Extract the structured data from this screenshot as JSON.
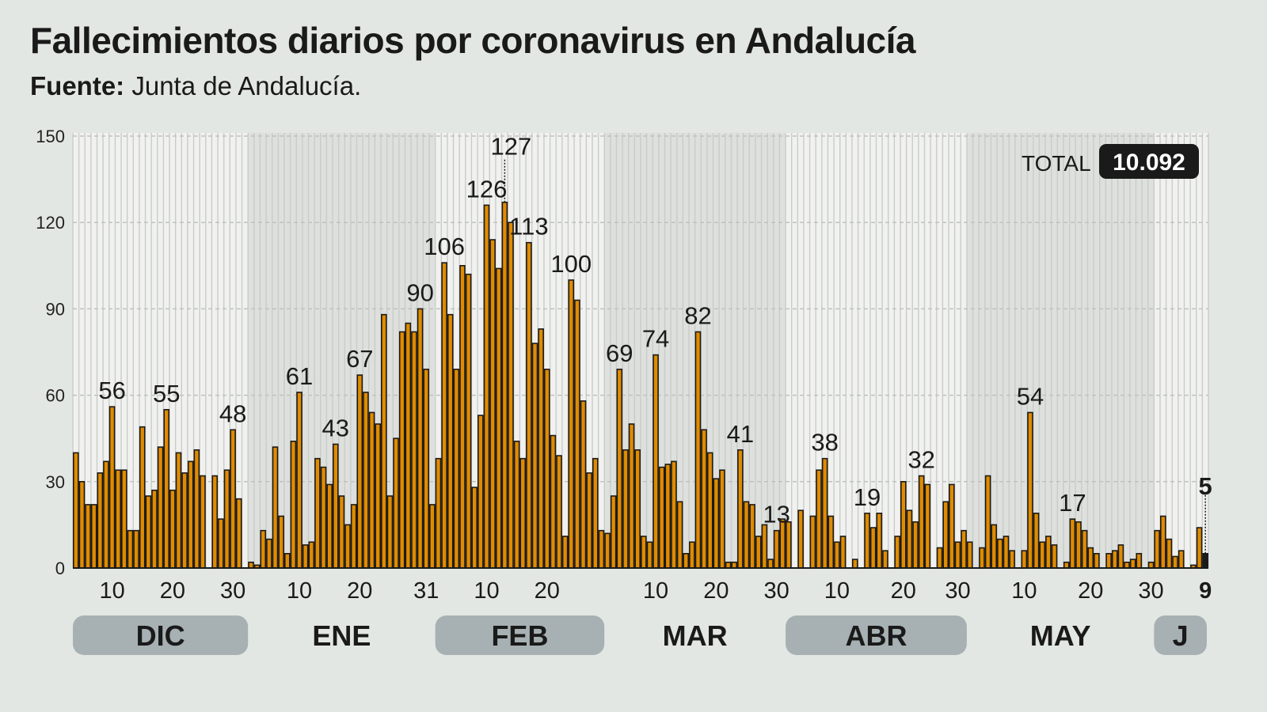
{
  "title": "Fallecimientos diarios por coronavirus en Andalucía",
  "source_label": "Fuente:",
  "source_value": "Junta de Andalucía.",
  "total_label": "TOTAL",
  "total_value": "10.092",
  "colors": {
    "bar": "#e08b00",
    "bar_stroke": "#1a1a1a",
    "highlight": "#1a1a1a",
    "pill": "#a7b0b2",
    "band_light": "#f1f2f0",
    "band_dark": "#dde0dd"
  },
  "chart_data": {
    "type": "bar",
    "title": "Fallecimientos diarios por coronavirus en Andalucía",
    "xlabel": "",
    "ylabel": "",
    "ylim": [
      0,
      150
    ],
    "yticks": [
      0,
      30,
      60,
      90,
      120,
      150
    ],
    "grid": true,
    "period": "4 dic – 9 jun (daily, gaps = no data)",
    "values": [
      40,
      30,
      22,
      22,
      33,
      37,
      56,
      34,
      34,
      13,
      13,
      49,
      25,
      27,
      42,
      55,
      27,
      40,
      33,
      37,
      41,
      32,
      0,
      32,
      17,
      34,
      48,
      24,
      0,
      2,
      1,
      13,
      10,
      42,
      18,
      5,
      44,
      61,
      8,
      9,
      38,
      35,
      29,
      43,
      25,
      15,
      22,
      67,
      61,
      54,
      50,
      88,
      25,
      45,
      82,
      85,
      82,
      90,
      69,
      22,
      38,
      106,
      88,
      69,
      105,
      102,
      28,
      53,
      126,
      114,
      104,
      127,
      120,
      44,
      38,
      113,
      78,
      83,
      69,
      46,
      39,
      11,
      100,
      93,
      58,
      33,
      38,
      13,
      12,
      25,
      69,
      41,
      50,
      41,
      11,
      9,
      74,
      35,
      36,
      37,
      23,
      5,
      9,
      82,
      48,
      40,
      31,
      34,
      2,
      2,
      41,
      23,
      22,
      11,
      15,
      3,
      13,
      17,
      16,
      0,
      20,
      0,
      18,
      34,
      38,
      18,
      9,
      11,
      0,
      3,
      0,
      19,
      14,
      19,
      6,
      0,
      11,
      30,
      20,
      16,
      32,
      29,
      0,
      7,
      23,
      29,
      9,
      13,
      9,
      0,
      7,
      32,
      15,
      10,
      11,
      6,
      0,
      6,
      54,
      19,
      9,
      11,
      8,
      0,
      2,
      17,
      16,
      13,
      7,
      5,
      0,
      5,
      6,
      8,
      2,
      3,
      5,
      0,
      2,
      13,
      18,
      10,
      4,
      6,
      0,
      1,
      14,
      5
    ],
    "highlight_last": true,
    "annotations": [
      {
        "at": 6,
        "label": "56"
      },
      {
        "at": 15,
        "label": "55"
      },
      {
        "at": 26,
        "label": "48"
      },
      {
        "at": 37,
        "label": "61"
      },
      {
        "at": 43,
        "label": "43"
      },
      {
        "at": 47,
        "label": "67"
      },
      {
        "at": 57,
        "label": "90"
      },
      {
        "at": 61,
        "label": "106"
      },
      {
        "at": 68,
        "label": "126"
      },
      {
        "at": 71,
        "label": "127",
        "leader": true
      },
      {
        "at": 75,
        "label": "113"
      },
      {
        "at": 82,
        "label": "100"
      },
      {
        "at": 90,
        "label": "69"
      },
      {
        "at": 96,
        "label": "74"
      },
      {
        "at": 103,
        "label": "82"
      },
      {
        "at": 110,
        "label": "41"
      },
      {
        "at": 116,
        "label": "13"
      },
      {
        "at": 124,
        "label": "38"
      },
      {
        "at": 131,
        "label": "19"
      },
      {
        "at": 140,
        "label": "32"
      },
      {
        "at": 158,
        "label": "54"
      },
      {
        "at": 165,
        "label": "17"
      },
      {
        "at": 187,
        "label": "5",
        "leader": true,
        "bold": true
      }
    ],
    "xticks": [
      {
        "at": 6,
        "label": "10"
      },
      {
        "at": 16,
        "label": "20"
      },
      {
        "at": 26,
        "label": "30"
      },
      {
        "at": 37,
        "label": "10"
      },
      {
        "at": 47,
        "label": "20"
      },
      {
        "at": 58,
        "label": "31"
      },
      {
        "at": 68,
        "label": "10"
      },
      {
        "at": 78,
        "label": "20"
      },
      {
        "at": 96,
        "label": "10"
      },
      {
        "at": 106,
        "label": "20"
      },
      {
        "at": 116,
        "label": "30"
      },
      {
        "at": 126,
        "label": "10"
      },
      {
        "at": 137,
        "label": "20"
      },
      {
        "at": 146,
        "label": "30"
      },
      {
        "at": 157,
        "label": "10"
      },
      {
        "at": 168,
        "label": "20"
      },
      {
        "at": 178,
        "label": "30"
      },
      {
        "at": 187,
        "label": "9",
        "bold": true
      }
    ],
    "months": [
      {
        "label": "DIC",
        "from": 0,
        "to": 29,
        "pill": true
      },
      {
        "label": "ENE",
        "from": 29,
        "to": 60,
        "pill": false
      },
      {
        "label": "FEB",
        "from": 60,
        "to": 88,
        "pill": true
      },
      {
        "label": "MAR",
        "from": 88,
        "to": 118,
        "pill": false
      },
      {
        "label": "ABR",
        "from": 118,
        "to": 148,
        "pill": true
      },
      {
        "label": "MAY",
        "from": 148,
        "to": 179,
        "pill": false
      },
      {
        "label": "J",
        "from": 179,
        "to": 188,
        "pill": true
      }
    ]
  }
}
